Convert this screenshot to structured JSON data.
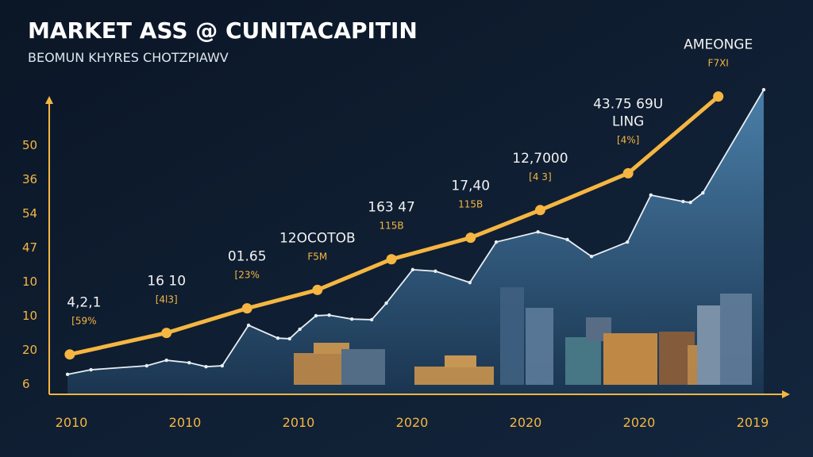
{
  "chart_data": {
    "type": "line",
    "title": "MARKET ASS @ CUNITACAPITIN",
    "subtitle": "BEOMUN KHYRES CHOTZPIAWV",
    "y_axis_labels": [
      50,
      36,
      54,
      47,
      10,
      10,
      20,
      6
    ],
    "categories": [
      "2010",
      "2010",
      "2010",
      "2020",
      "2020",
      "2020",
      "2019"
    ],
    "xlim": [
      0,
      100
    ],
    "ylim": [
      0,
      100
    ],
    "series": [
      {
        "name": "gold",
        "color": "#f5b642",
        "x": [
          2.8,
          16,
          27,
          36.6,
          46.7,
          57.5,
          67,
          79,
          91.3
        ],
        "values": [
          13,
          20,
          28,
          34,
          44,
          51,
          60,
          72,
          97
        ]
      },
      {
        "name": "white",
        "color": "#e8eef5",
        "x": [
          2.5,
          5.7,
          13.3,
          16.0,
          19.1,
          21.4,
          23.6,
          27.2,
          31.2,
          32.8,
          34.2,
          36.4,
          38.2,
          41.3,
          44.0,
          46.0,
          49.6,
          52.7,
          57.4,
          61.0,
          66.7,
          70.7,
          74.0,
          78.9,
          82.1,
          86.5,
          87.5,
          89.2,
          97.5
        ],
        "values": [
          6.5,
          8.0,
          9.3,
          11.1,
          10.3,
          9.0,
          9.3,
          22.5,
          18.3,
          18.1,
          21.2,
          25.6,
          25.8,
          24.5,
          24.3,
          29.7,
          40.6,
          40.1,
          36.4,
          49.6,
          52.9,
          50.4,
          44.9,
          49.6,
          64.9,
          62.8,
          62.5,
          65.6,
          99.2
        ]
      }
    ],
    "annotations": [
      [
        "4,2,1",
        "[59%"
      ],
      [
        "16 10",
        "[4l3]"
      ],
      [
        "01.65",
        "[23%"
      ],
      [
        "12OCOTOB",
        "F5M"
      ],
      [
        "163 47",
        "115B"
      ],
      [
        "17,40",
        "115B"
      ],
      [
        "12,7000",
        "[4 3]"
      ],
      [
        "43.75 69U",
        "LING",
        "[4%]"
      ],
      [
        "AMEONGE",
        "F7XI"
      ]
    ]
  }
}
